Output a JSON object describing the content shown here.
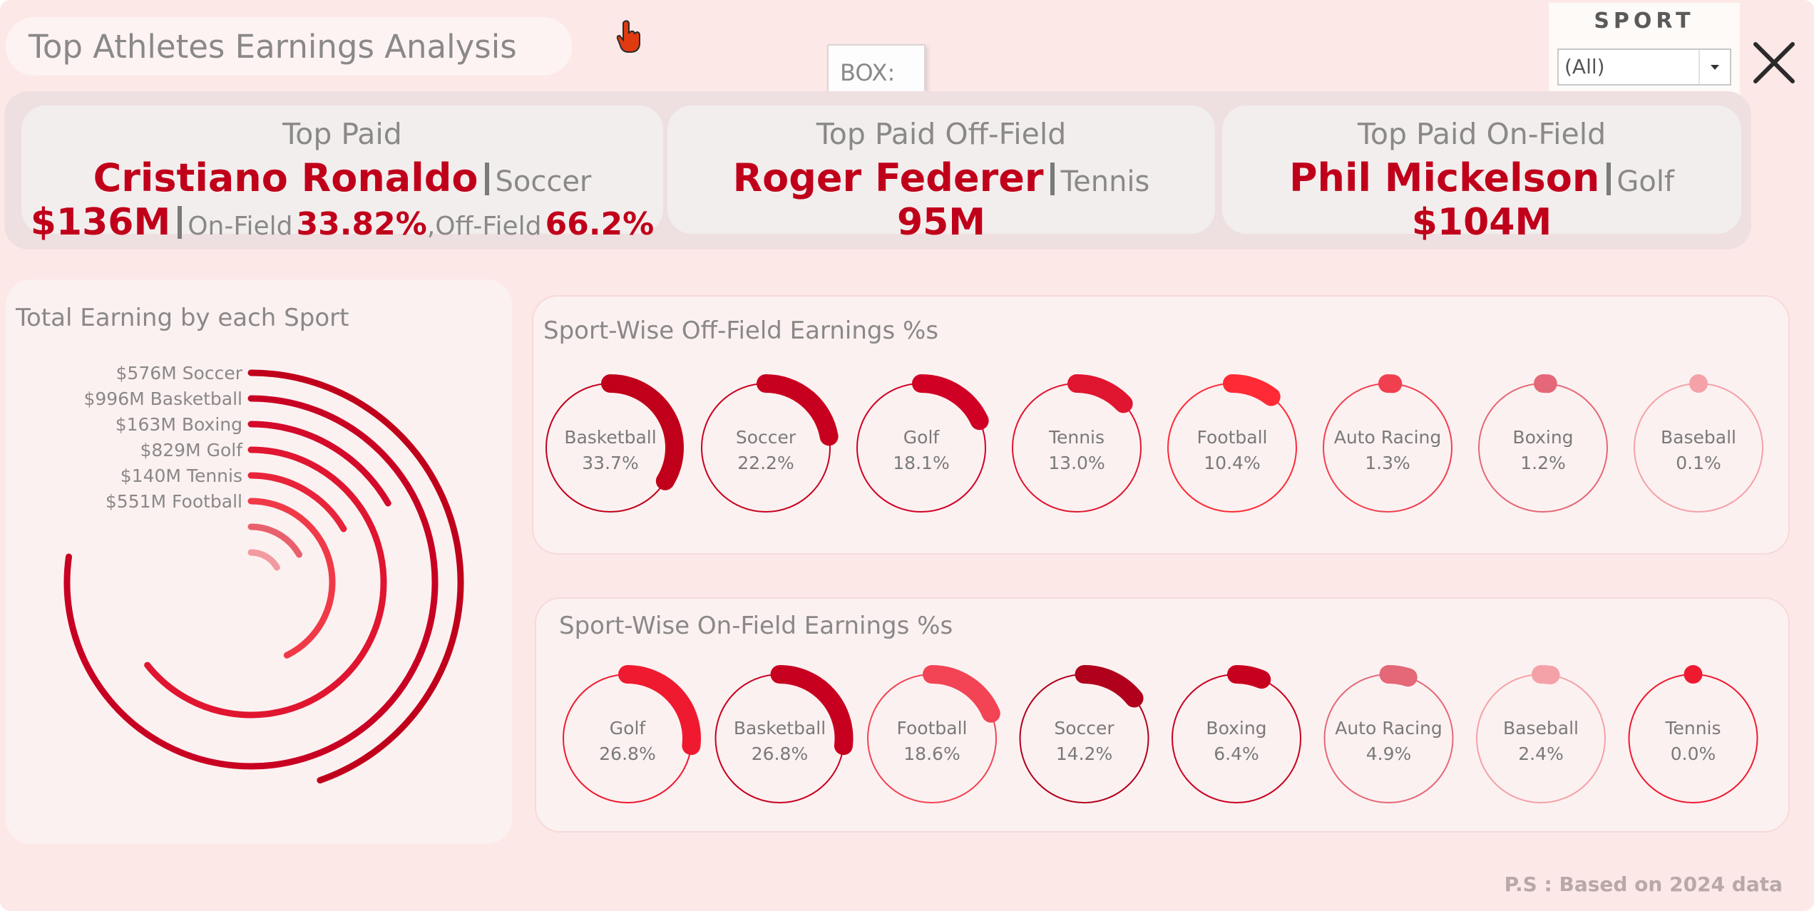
{
  "header": {
    "title": "Top Athletes Earnings Analysis",
    "tooltip_text": "BOX:",
    "sport_filter_label": "SPORT",
    "sport_filter_value": "(All)"
  },
  "kpis": [
    {
      "title": "Top Paid",
      "name": "Cristiano Ronaldo",
      "sport": "Soccer",
      "value": "$136M",
      "onfield_label": "On-Field",
      "onfield_pct": "33.82%",
      "comma": ",",
      "offfield_label": "Off-Field",
      "offfield_pct": "66.2%"
    },
    {
      "title": "Top Paid Off-Field",
      "name": "Roger Federer",
      "sport": "Tennis",
      "value": "95M"
    },
    {
      "title": "Top Paid On-Field",
      "name": "Phil Mickelson",
      "sport": "Golf",
      "value": "$104M"
    }
  ],
  "colors": {
    "background": "#fde8e8",
    "accent": "#c0001a",
    "panel": "#fcf1f1"
  },
  "chart_data": [
    {
      "type": "radial-bar",
      "title": "Total Earning by each Sport",
      "labels": [
        "$576M  Soccer",
        "$996M  Basketball",
        "$163M  Boxing",
        "$829M  Golf",
        "$140M  Tennis",
        "$551M  Football"
      ],
      "categories": [
        "Soccer",
        "Basketball",
        "Boxing",
        "Golf",
        "Tennis",
        "Football",
        "Auto Racing",
        "Baseball"
      ],
      "values": [
        576,
        996,
        163,
        829,
        140,
        551,
        105,
        40
      ],
      "colors": [
        "#c0001a",
        "#c80022",
        "#d40a2a",
        "#e01530",
        "#e8243a",
        "#f03a48",
        "#e8606c",
        "#f29aa0"
      ]
    },
    {
      "type": "donut-gauge",
      "title": "Sport-Wise Off-Field Earnings %s",
      "categories": [
        "Basketball",
        "Soccer",
        "Golf",
        "Tennis",
        "Football",
        "Auto Racing",
        "Boxing",
        "Baseball"
      ],
      "labels": [
        "33.7%",
        "22.2%",
        "18.1%",
        "13.0%",
        "10.4%",
        "1.3%",
        "1.2%",
        "0.1%"
      ],
      "values": [
        33.7,
        22.2,
        18.1,
        13.0,
        10.4,
        1.3,
        1.2,
        0.1
      ],
      "colors": [
        "#c0001a",
        "#c8001f",
        "#d00025",
        "#e01530",
        "#ff2a35",
        "#f04050",
        "#e46878",
        "#f4a2a8"
      ]
    },
    {
      "type": "donut-gauge",
      "title": "Sport-Wise On-Field Earnings %s",
      "categories": [
        "Golf",
        "Basketball",
        "Football",
        "Soccer",
        "Boxing",
        "Auto Racing",
        "Baseball",
        "Tennis"
      ],
      "labels": [
        "26.8%",
        "26.8%",
        "18.6%",
        "14.2%",
        "6.4%",
        "4.9%",
        "2.4%",
        "0.0%"
      ],
      "values": [
        26.8,
        26.8,
        18.6,
        14.2,
        6.4,
        4.9,
        2.4,
        0.0
      ],
      "colors": [
        "#ef1a30",
        "#c8001f",
        "#f24454",
        "#b0001c",
        "#c8001f",
        "#e46878",
        "#f4a2a8",
        "#ef1a30"
      ]
    }
  ],
  "footer": {
    "note": "P.S : Based on 2024 data"
  }
}
